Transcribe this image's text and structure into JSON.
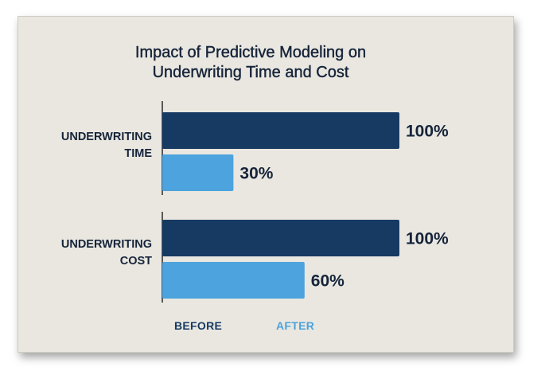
{
  "chart_data": {
    "type": "bar",
    "orientation": "horizontal",
    "title_line1": "Impact of Predictive Modeling on",
    "title_line2": "Underwriting Time and Cost",
    "categories": [
      {
        "line1": "UNDERWRITING",
        "line2": "TIME"
      },
      {
        "line1": "UNDERWRITING",
        "line2": "COST"
      }
    ],
    "series": [
      {
        "name": "BEFORE",
        "color": "#173a63",
        "values": [
          100,
          100
        ],
        "labels": [
          "100%",
          "100%"
        ]
      },
      {
        "name": "AFTER",
        "color": "#4ca3dd",
        "values": [
          30,
          60
        ],
        "labels": [
          "30%",
          "60%"
        ]
      }
    ],
    "xlim": [
      0,
      100
    ],
    "grid": false,
    "legend_position": "bottom"
  }
}
